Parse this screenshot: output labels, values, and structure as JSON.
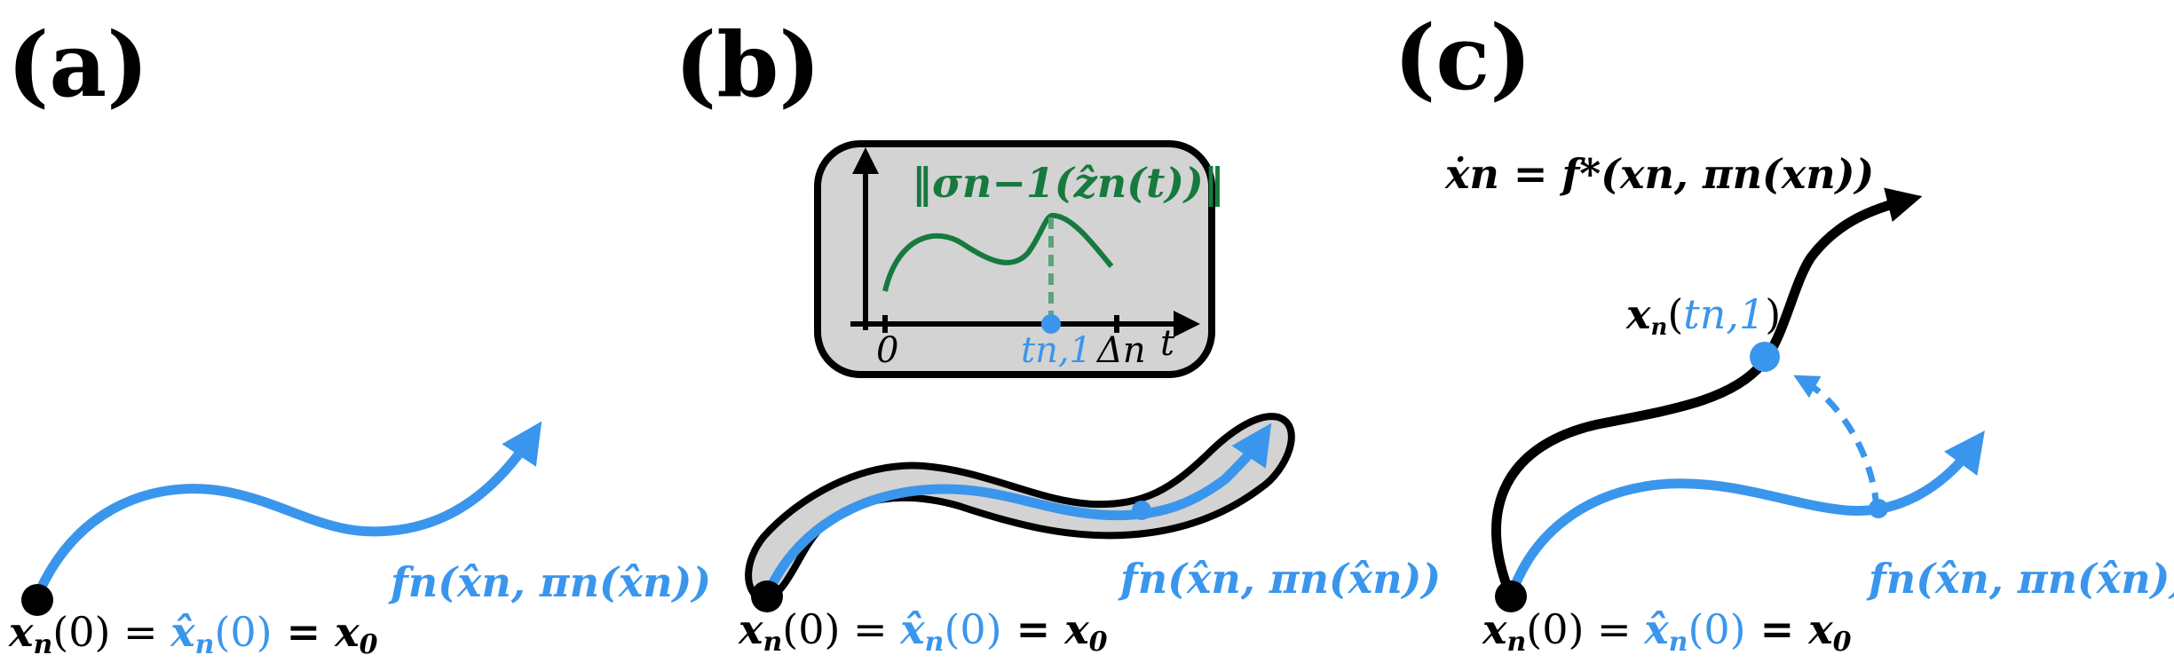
{
  "panels": {
    "a": {
      "label": "(a)",
      "start_label": {
        "p1": "x",
        "p1_sub": "n",
        "p2": "(0) = ",
        "p3": "x̂",
        "p3_sub": "n",
        "p4": "(0)",
        "p5": " = x",
        "p5_sub": "0"
      },
      "model_label": "fn(x̂n, πn(x̂n))"
    },
    "b": {
      "label": "(b)",
      "inset_title": "‖σn−1(ẑn(t))‖",
      "axis_ticks": {
        "zero": "0",
        "t_n1": "tn,1",
        "delta": "Δn",
        "t": "t"
      },
      "start_label": {
        "p1": "x",
        "p1_sub": "n",
        "p2": "(0) = ",
        "p3": "x̂",
        "p3_sub": "n",
        "p4": "(0)",
        "p5": " = x",
        "p5_sub": "0"
      },
      "model_label": "fn(x̂n, πn(x̂n))"
    },
    "c": {
      "label": "(c)",
      "true_dynamics_label": "ẋn = f*(xn, πn(xn))",
      "point_label": {
        "p1": "x",
        "p1_sub": "n",
        "p2": "(",
        "p3": "tn,1",
        "p4": ")"
      },
      "start_label": {
        "p1": "x",
        "p1_sub": "n",
        "p2": "(0) = ",
        "p3": "x̂",
        "p3_sub": "n",
        "p4": "(0)",
        "p5": " = x",
        "p5_sub": "0"
      },
      "model_label": "fn(x̂n, πn(x̂n))"
    }
  },
  "colors": {
    "model_blue": "#3a96ec",
    "true_black": "#000000",
    "uncertainty_green": "#167a3e",
    "tube_gray": "#d3d3d3"
  }
}
